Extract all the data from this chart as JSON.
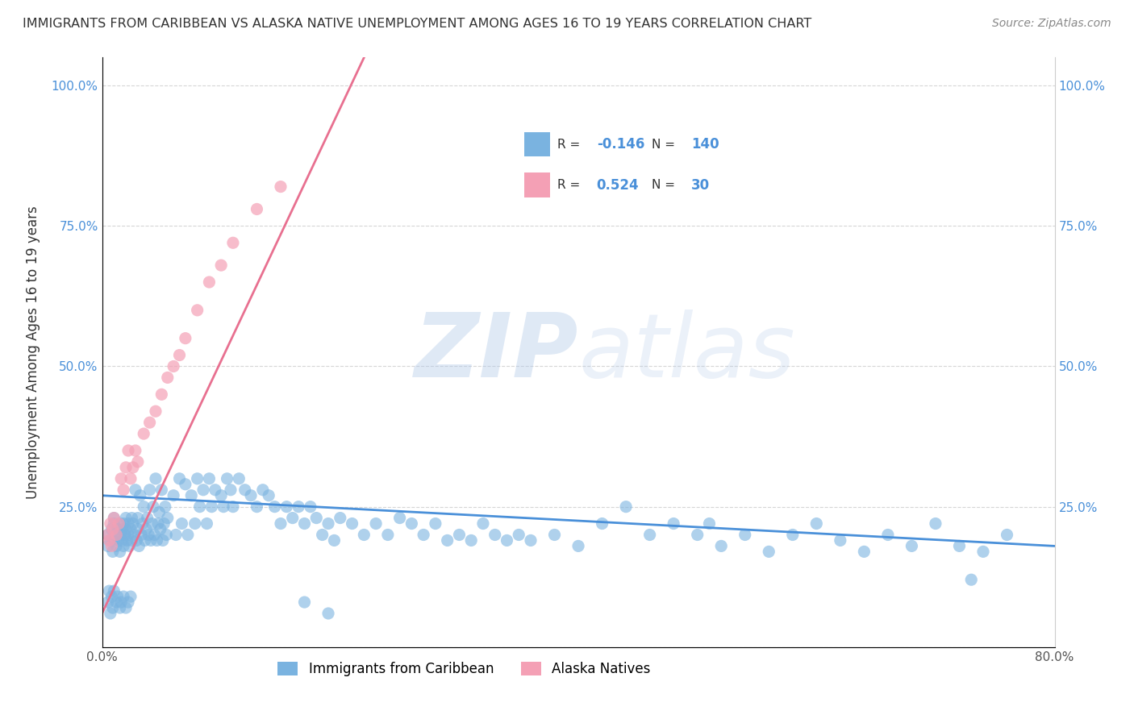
{
  "title": "IMMIGRANTS FROM CARIBBEAN VS ALASKA NATIVE UNEMPLOYMENT AMONG AGES 16 TO 19 YEARS CORRELATION CHART",
  "source": "Source: ZipAtlas.com",
  "ylabel": "Unemployment Among Ages 16 to 19 years",
  "xlim": [
    0.0,
    0.8
  ],
  "ylim": [
    0.0,
    1.05
  ],
  "blue_color": "#7ab3e0",
  "pink_color": "#f4a0b5",
  "blue_line_color": "#4a90d9",
  "pink_line_color": "#e87090",
  "legend_blue_R": "-0.146",
  "legend_blue_N": "140",
  "legend_pink_R": "0.524",
  "legend_pink_N": "30",
  "legend_label_blue": "Immigrants from Caribbean",
  "legend_label_pink": "Alaska Natives",
  "watermark": "ZIPatlas",
  "blue_trend_x0": 0.0,
  "blue_trend_y0": 0.27,
  "blue_trend_x1": 0.8,
  "blue_trend_y1": 0.18,
  "pink_trend_x0": 0.0,
  "pink_trend_y0": 0.06,
  "pink_trend_x1": 0.22,
  "pink_trend_y1": 1.05,
  "blue_scatter_x": [
    0.005,
    0.005,
    0.007,
    0.008,
    0.009,
    0.01,
    0.01,
    0.01,
    0.012,
    0.012,
    0.013,
    0.014,
    0.015,
    0.015,
    0.016,
    0.017,
    0.017,
    0.018,
    0.018,
    0.019,
    0.02,
    0.02,
    0.021,
    0.022,
    0.022,
    0.023,
    0.024,
    0.025,
    0.025,
    0.026,
    0.027,
    0.028,
    0.029,
    0.03,
    0.03,
    0.031,
    0.032,
    0.033,
    0.034,
    0.035,
    0.036,
    0.037,
    0.038,
    0.039,
    0.04,
    0.041,
    0.042,
    0.043,
    0.044,
    0.045,
    0.046,
    0.047,
    0.048,
    0.049,
    0.05,
    0.051,
    0.052,
    0.053,
    0.054,
    0.055,
    0.06,
    0.062,
    0.065,
    0.067,
    0.07,
    0.072,
    0.075,
    0.078,
    0.08,
    0.082,
    0.085,
    0.088,
    0.09,
    0.092,
    0.095,
    0.1,
    0.102,
    0.105,
    0.108,
    0.11,
    0.115,
    0.12,
    0.125,
    0.13,
    0.135,
    0.14,
    0.145,
    0.15,
    0.155,
    0.16,
    0.165,
    0.17,
    0.175,
    0.18,
    0.185,
    0.19,
    0.195,
    0.2,
    0.21,
    0.22,
    0.23,
    0.24,
    0.25,
    0.26,
    0.27,
    0.28,
    0.29,
    0.3,
    0.31,
    0.32,
    0.33,
    0.34,
    0.35,
    0.36,
    0.38,
    0.4,
    0.42,
    0.44,
    0.46,
    0.48,
    0.5,
    0.51,
    0.52,
    0.54,
    0.56,
    0.58,
    0.6,
    0.62,
    0.64,
    0.66,
    0.68,
    0.7,
    0.72,
    0.74,
    0.76
  ],
  "blue_scatter_y": [
    0.2,
    0.18,
    0.19,
    0.21,
    0.17,
    0.22,
    0.19,
    0.23,
    0.2,
    0.18,
    0.21,
    0.19,
    0.22,
    0.17,
    0.2,
    0.21,
    0.19,
    0.22,
    0.18,
    0.2,
    0.21,
    0.23,
    0.19,
    0.22,
    0.2,
    0.18,
    0.21,
    0.23,
    0.19,
    0.22,
    0.2,
    0.28,
    0.19,
    0.21,
    0.23,
    0.18,
    0.27,
    0.2,
    0.22,
    0.25,
    0.19,
    0.21,
    0.23,
    0.2,
    0.28,
    0.19,
    0.22,
    0.25,
    0.2,
    0.3,
    0.19,
    0.22,
    0.24,
    0.21,
    0.28,
    0.19,
    0.22,
    0.25,
    0.2,
    0.23,
    0.27,
    0.2,
    0.3,
    0.22,
    0.29,
    0.2,
    0.27,
    0.22,
    0.3,
    0.25,
    0.28,
    0.22,
    0.3,
    0.25,
    0.28,
    0.27,
    0.25,
    0.3,
    0.28,
    0.25,
    0.3,
    0.28,
    0.27,
    0.25,
    0.28,
    0.27,
    0.25,
    0.22,
    0.25,
    0.23,
    0.25,
    0.22,
    0.25,
    0.23,
    0.2,
    0.22,
    0.19,
    0.23,
    0.22,
    0.2,
    0.22,
    0.2,
    0.23,
    0.22,
    0.2,
    0.22,
    0.19,
    0.2,
    0.19,
    0.22,
    0.2,
    0.19,
    0.2,
    0.19,
    0.2,
    0.18,
    0.22,
    0.25,
    0.2,
    0.22,
    0.2,
    0.22,
    0.18,
    0.2,
    0.17,
    0.2,
    0.22,
    0.19,
    0.17,
    0.2,
    0.18,
    0.22,
    0.18,
    0.17,
    0.2
  ],
  "blue_scatter_extra_x": [
    0.005,
    0.006,
    0.007,
    0.008,
    0.009,
    0.01,
    0.012,
    0.013,
    0.015,
    0.016,
    0.018,
    0.02,
    0.022,
    0.024,
    0.17,
    0.19,
    0.73
  ],
  "blue_scatter_extra_y": [
    0.08,
    0.1,
    0.06,
    0.09,
    0.07,
    0.1,
    0.08,
    0.09,
    0.07,
    0.08,
    0.09,
    0.07,
    0.08,
    0.09,
    0.08,
    0.06,
    0.12
  ],
  "pink_scatter_x": [
    0.005,
    0.006,
    0.007,
    0.008,
    0.009,
    0.01,
    0.012,
    0.014,
    0.016,
    0.018,
    0.02,
    0.022,
    0.024,
    0.026,
    0.028,
    0.03,
    0.035,
    0.04,
    0.045,
    0.05,
    0.055,
    0.06,
    0.065,
    0.07,
    0.08,
    0.09,
    0.1,
    0.11,
    0.13,
    0.15
  ],
  "pink_scatter_y": [
    0.2,
    0.19,
    0.22,
    0.18,
    0.21,
    0.23,
    0.2,
    0.22,
    0.3,
    0.28,
    0.32,
    0.35,
    0.3,
    0.32,
    0.35,
    0.33,
    0.38,
    0.4,
    0.42,
    0.45,
    0.48,
    0.5,
    0.52,
    0.55,
    0.6,
    0.65,
    0.68,
    0.72,
    0.78,
    0.82
  ]
}
